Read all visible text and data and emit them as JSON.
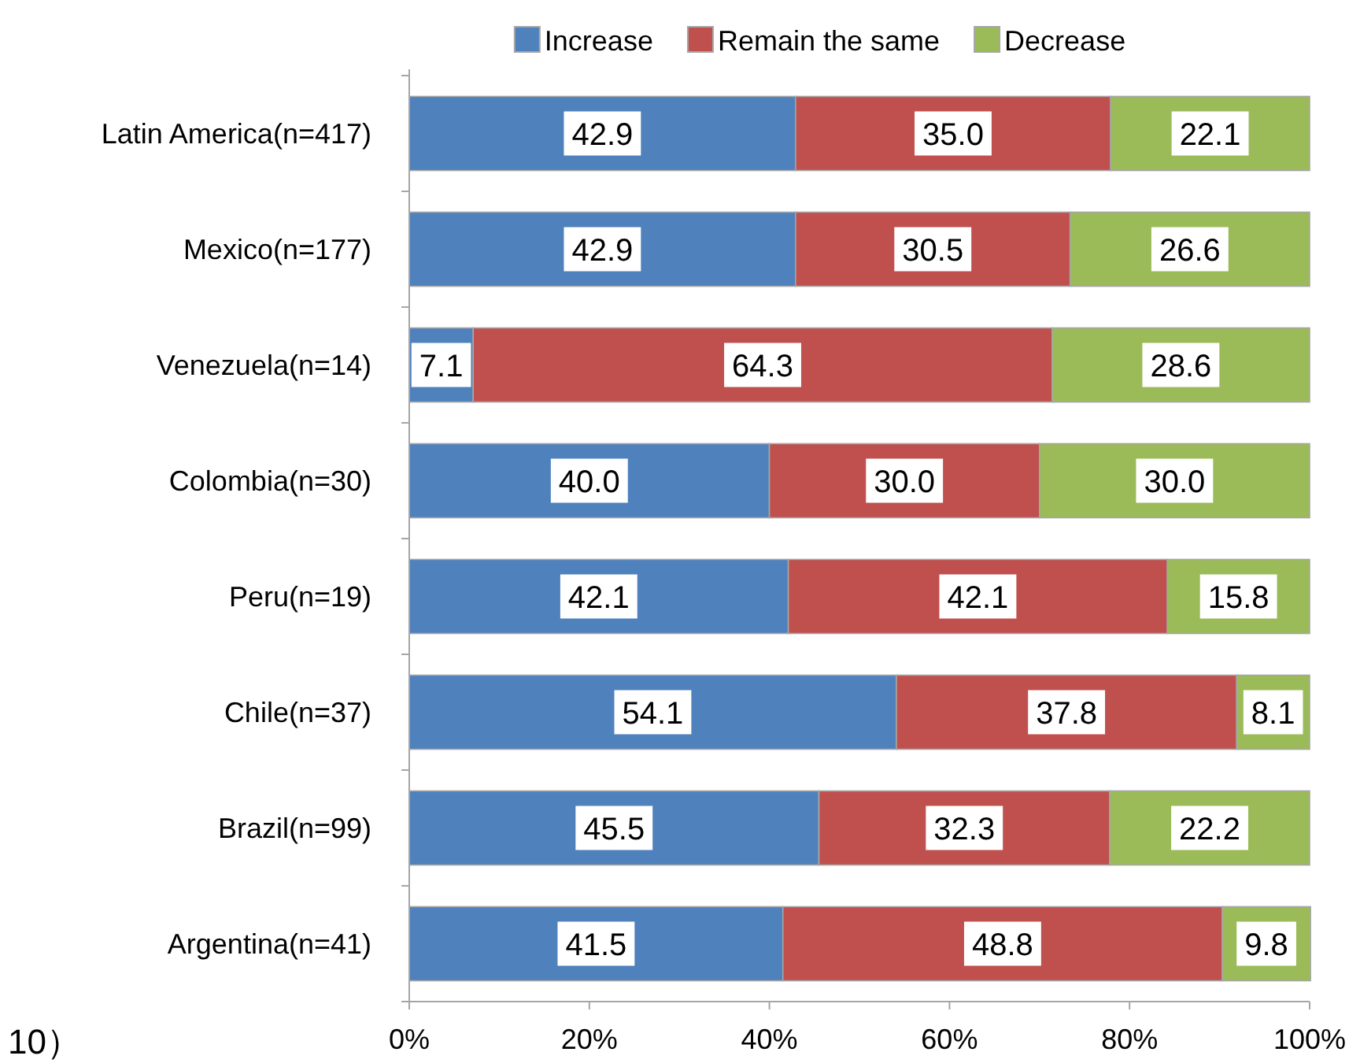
{
  "chart_data": {
    "type": "bar",
    "orientation": "horizontal",
    "stacked": true,
    "categories": [
      "Latin America(n=417)",
      "Mexico(n=177)",
      "Venezuela(n=14)",
      "Colombia(n=30)",
      "Peru(n=19)",
      "Chile(n=37)",
      "Brazil(n=99)",
      "Argentina(n=41)"
    ],
    "series": [
      {
        "name": "Increase",
        "color": "#4f81bd",
        "values": [
          42.9,
          42.9,
          7.1,
          40.0,
          42.1,
          54.1,
          45.5,
          41.5
        ],
        "value_labels": [
          "42.9",
          "42.9",
          "7.1",
          "40.0",
          "42.1",
          "54.1",
          "45.5",
          "41.5"
        ]
      },
      {
        "name": "Remain the same",
        "color": "#c0504d",
        "values": [
          35.0,
          30.5,
          64.3,
          30.0,
          42.1,
          37.8,
          32.3,
          48.8
        ],
        "value_labels": [
          "35.0",
          "30.5",
          "64.3",
          "30.0",
          "42.1",
          "37.8",
          "32.3",
          "48.8"
        ]
      },
      {
        "name": "Decrease",
        "color": "#9bbb59",
        "values": [
          22.1,
          26.6,
          28.6,
          30.0,
          15.8,
          8.1,
          22.2,
          9.8
        ],
        "value_labels": [
          "22.1",
          "26.6",
          "28.6",
          "30.0",
          "15.8",
          "8.1",
          "22.2",
          "9.8"
        ]
      }
    ],
    "xlim": [
      0,
      100
    ],
    "xticks": [
      {
        "value": 0,
        "label": "0%"
      },
      {
        "value": 20,
        "label": "20%"
      },
      {
        "value": 40,
        "label": "40%"
      },
      {
        "value": 60,
        "label": "60%"
      },
      {
        "value": 80,
        "label": "80%"
      },
      {
        "value": 100,
        "label": "100%"
      }
    ],
    "legend": "top",
    "grid": false,
    "annotations": [
      "10）"
    ]
  }
}
